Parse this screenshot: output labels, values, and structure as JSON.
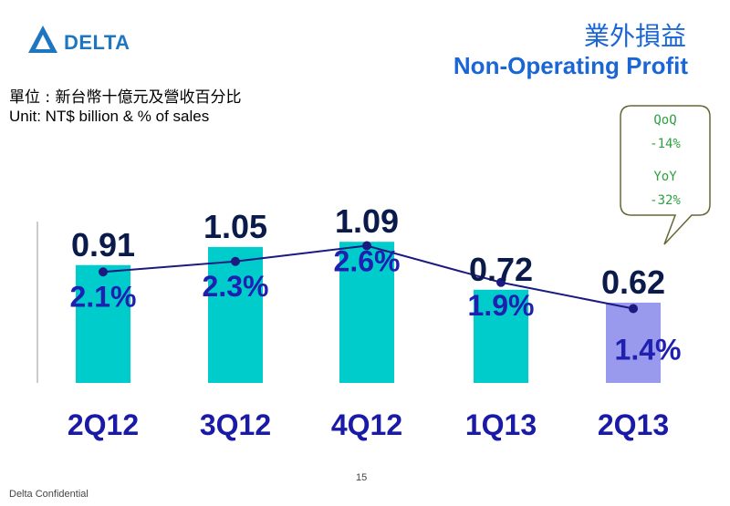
{
  "header": {
    "logo_text": "DELTA",
    "title_zh": "業外損益",
    "title_en": "Non-Operating Profit"
  },
  "unit": {
    "zh": "單位 : 新台幣十億元及營收百分比",
    "en": "Unit: NT$ billion & % of sales"
  },
  "callout": {
    "qoq_label": "QoQ",
    "qoq_value": "-14%",
    "yoy_label": "YoY",
    "yoy_value": "-32%"
  },
  "footer": {
    "page": "15",
    "confidential": "Delta Confidential"
  },
  "colors": {
    "bar": "#00cccc",
    "bar_highlight": "#9999ee",
    "line": "#1a1a80",
    "value_label": "#0a1a4a",
    "pct_label": "#2020b0",
    "category_label": "#1a1aa8",
    "callout_border": "#666633",
    "callout_text": "#2ea043"
  },
  "chart_data": {
    "type": "bar",
    "categories": [
      "2Q12",
      "3Q12",
      "4Q12",
      "1Q13",
      "2Q13"
    ],
    "series": [
      {
        "values": [
          0.91,
          1.05,
          1.09,
          0.72,
          0.62
        ]
      },
      {
        "values": [
          2.1,
          2.3,
          2.6,
          1.9,
          1.4
        ]
      }
    ],
    "value_labels": [
      "0.91",
      "1.05",
      "1.09",
      "0.72",
      "0.62"
    ],
    "pct_labels": [
      "2.1%",
      "2.3%",
      "2.6%",
      "1.9%",
      "1.4%"
    ],
    "highlight_index": 4
  }
}
